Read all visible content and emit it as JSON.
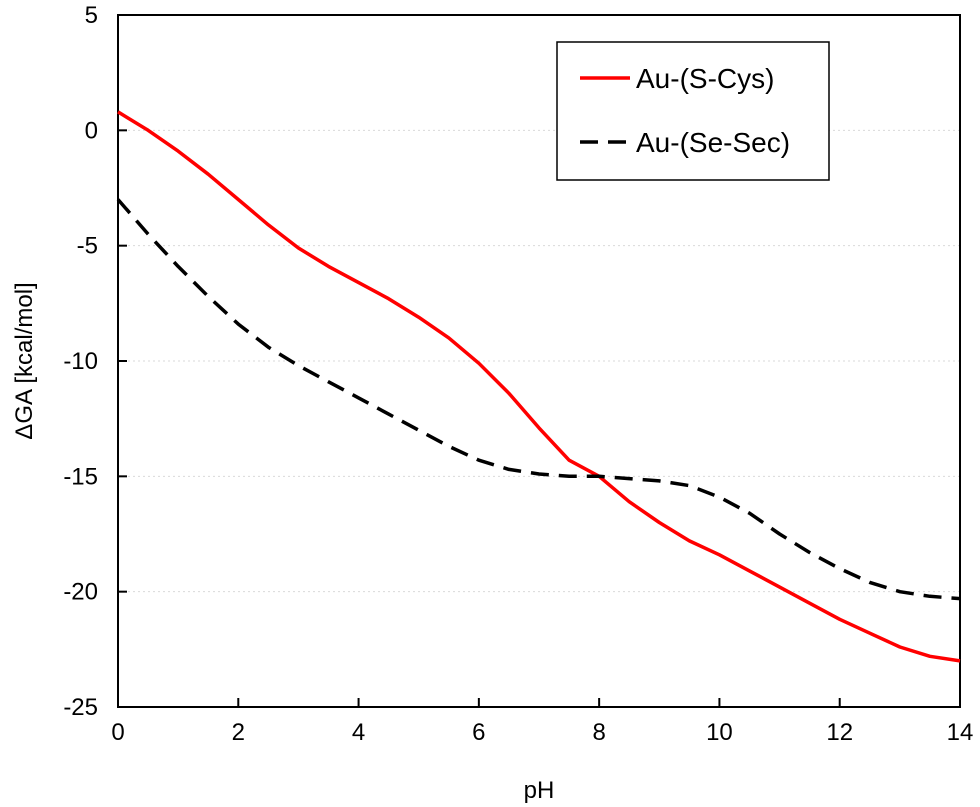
{
  "chart_data": {
    "type": "line",
    "title": "",
    "xlabel": "pH",
    "ylabel": "ΔGA  [kcal/mol]",
    "xlim": [
      0,
      14
    ],
    "ylim": [
      -25,
      5
    ],
    "xticks": [
      0,
      2,
      4,
      6,
      8,
      10,
      12,
      14
    ],
    "yticks": [
      5,
      0,
      -5,
      -10,
      -15,
      -20,
      -25
    ],
    "grid": "horizontal dotted",
    "legend_position": "top-right",
    "series": [
      {
        "name": "Au-(S-Cys)",
        "color": "#ff0000",
        "style": "solid",
        "x": [
          0,
          0.5,
          1,
          1.5,
          2,
          2.5,
          3,
          3.5,
          4,
          4.5,
          5,
          5.5,
          6,
          6.5,
          7,
          7.5,
          8,
          8.5,
          9,
          9.5,
          10,
          10.5,
          11,
          11.5,
          12,
          12.5,
          13,
          13.5,
          14
        ],
        "y": [
          0.8,
          0.0,
          -0.9,
          -1.9,
          -3.0,
          -4.1,
          -5.1,
          -5.9,
          -6.6,
          -7.3,
          -8.1,
          -9.0,
          -10.1,
          -11.4,
          -12.9,
          -14.3,
          -15.0,
          -16.1,
          -17.0,
          -17.8,
          -18.4,
          -19.1,
          -19.8,
          -20.5,
          -21.2,
          -21.8,
          -22.4,
          -22.8,
          -23.0
        ]
      },
      {
        "name": "Au-(Se-Sec)",
        "color": "#000000",
        "style": "dashed",
        "x": [
          0,
          0.5,
          1,
          1.5,
          2,
          2.5,
          3,
          3.5,
          4,
          4.5,
          5,
          5.5,
          6,
          6.5,
          7,
          7.5,
          8,
          8.5,
          9,
          9.5,
          10,
          10.5,
          11,
          11.5,
          12,
          12.5,
          13,
          13.5,
          14
        ],
        "y": [
          -3.0,
          -4.5,
          -5.9,
          -7.2,
          -8.4,
          -9.4,
          -10.2,
          -10.9,
          -11.6,
          -12.3,
          -13.0,
          -13.7,
          -14.3,
          -14.7,
          -14.9,
          -15.0,
          -15.0,
          -15.1,
          -15.2,
          -15.4,
          -15.9,
          -16.6,
          -17.5,
          -18.3,
          -19.0,
          -19.6,
          -20.0,
          -20.2,
          -20.3
        ]
      }
    ]
  }
}
